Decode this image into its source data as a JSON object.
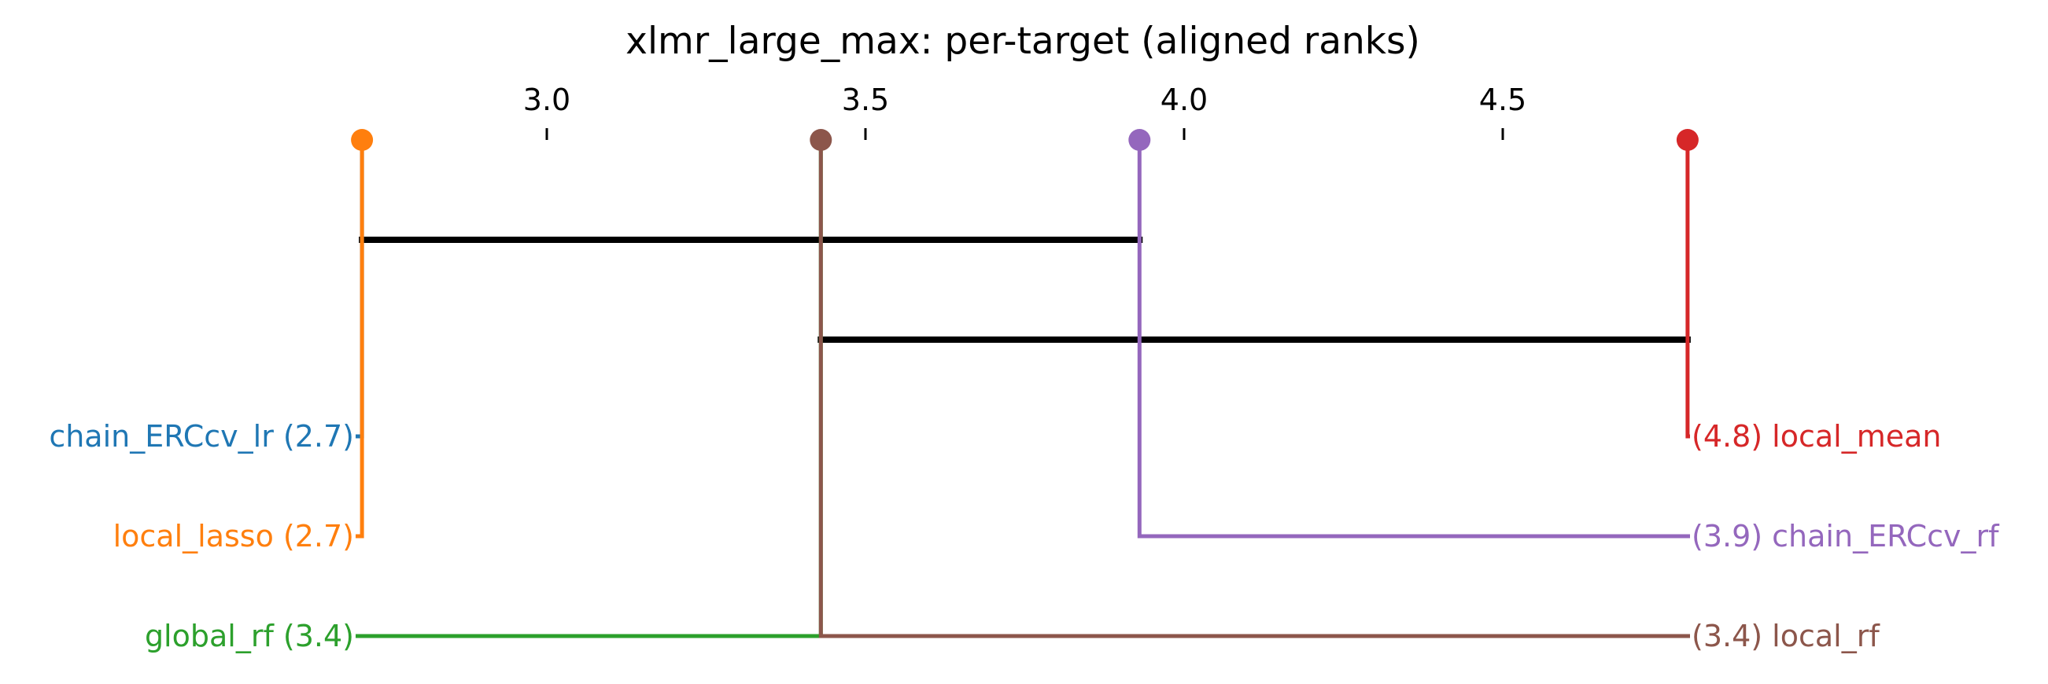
{
  "chart_data": {
    "type": "critical-difference",
    "title": "xlmr_large_max: per-target (aligned ranks)",
    "axis": {
      "ticks": [
        3.0,
        3.5,
        4.0,
        4.5
      ],
      "tick_labels": [
        "3.0",
        "3.5",
        "4.0",
        "4.5"
      ]
    },
    "methods": [
      {
        "name": "chain_ERCcv_lr",
        "rank": 2.71,
        "rank_label": "2.7",
        "side": "left",
        "color": "#1f77b4"
      },
      {
        "name": "local_lasso",
        "rank": 2.71,
        "rank_label": "2.7",
        "side": "left",
        "color": "#ff7f0e"
      },
      {
        "name": "global_rf",
        "rank": 3.43,
        "rank_label": "3.4",
        "side": "left",
        "color": "#2ca02c"
      },
      {
        "name": "local_mean",
        "rank": 4.79,
        "rank_label": "4.8",
        "side": "right",
        "color": "#d62728"
      },
      {
        "name": "chain_ERCcv_rf",
        "rank": 3.93,
        "rank_label": "3.9",
        "side": "right",
        "color": "#9467bd"
      },
      {
        "name": "local_rf",
        "rank": 3.43,
        "rank_label": "3.4",
        "side": "right",
        "color": "#8c564b"
      }
    ],
    "top_markers": [
      {
        "rank": 2.71,
        "color": "#ff7f0e"
      },
      {
        "rank": 3.43,
        "color": "#8c564b"
      },
      {
        "rank": 3.93,
        "color": "#9467bd"
      },
      {
        "rank": 4.79,
        "color": "#d62728"
      }
    ],
    "cliques": [
      {
        "from": 2.71,
        "to": 3.93
      },
      {
        "from": 3.43,
        "to": 4.79
      }
    ]
  }
}
